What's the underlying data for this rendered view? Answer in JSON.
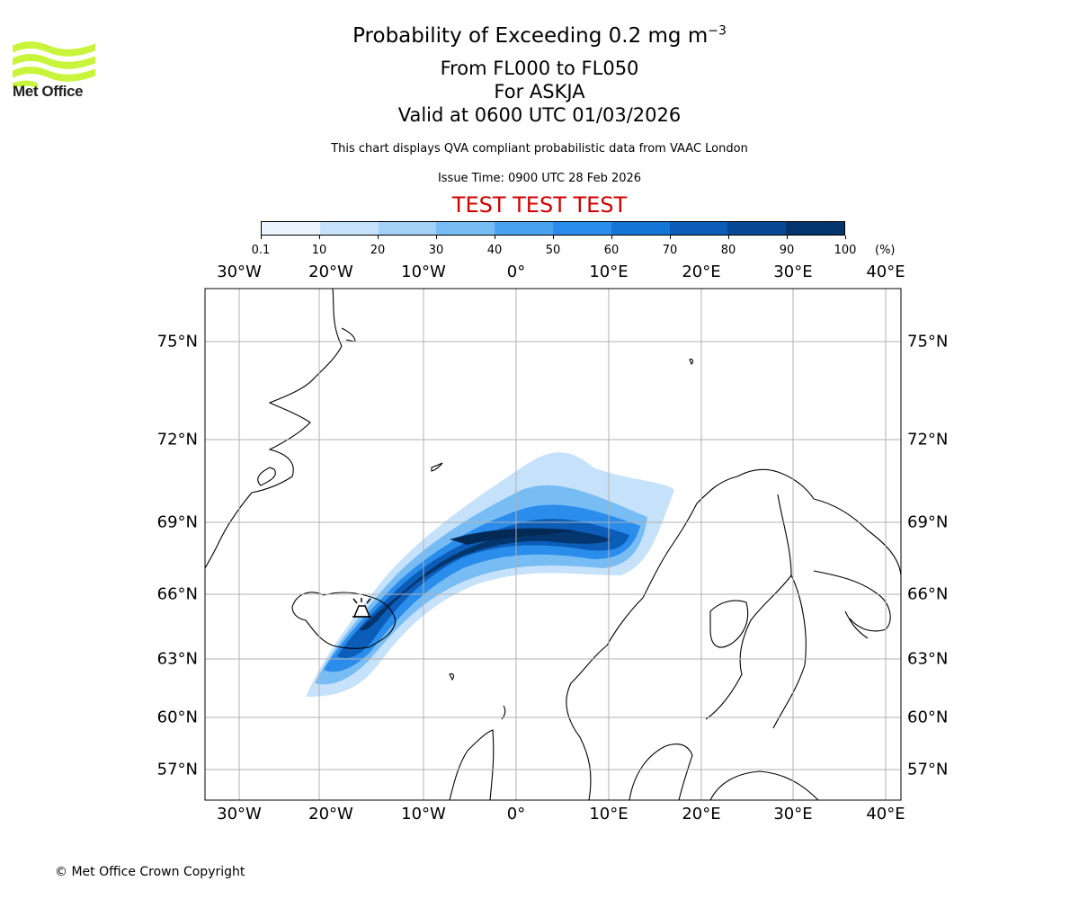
{
  "title": {
    "line1_prefix": "Probability of Exceeding 0.2 mg m",
    "line1_exponent": "−3",
    "line2": "From FL000 to FL050",
    "line3": "For ASKJA",
    "line4": "Valid at 0600 UTC 01/03/2026"
  },
  "subtitle": "This chart displays QVA compliant probabilistic data from VAAC London",
  "issue_time": "Issue Time: 0900 UTC 28 Feb 2026",
  "test_banner": "TEST TEST TEST",
  "logo": {
    "text": "Met Office",
    "color": "#c8f53c"
  },
  "colorbar": {
    "unit": "(%)",
    "ticks": [
      "0.1",
      "10",
      "20",
      "30",
      "40",
      "50",
      "60",
      "70",
      "80",
      "90",
      "100"
    ],
    "colors": [
      "#eaf4ff",
      "#c6e2fb",
      "#a3d0f7",
      "#78bcf4",
      "#4aa3f0",
      "#2a8ceb",
      "#1575d6",
      "#0b5db8",
      "#074994",
      "#04356c",
      "#022a55"
    ]
  },
  "map": {
    "lon_labels": [
      "30°W",
      "20°W",
      "10°W",
      "0°",
      "10°E",
      "20°E",
      "30°E",
      "40°E"
    ],
    "lat_labels": [
      "75°N",
      "72°N",
      "69°N",
      "66°N",
      "63°N",
      "60°N",
      "57°N"
    ],
    "volcano": "ASKJA"
  },
  "copyright": "© Met Office Crown Copyright"
}
